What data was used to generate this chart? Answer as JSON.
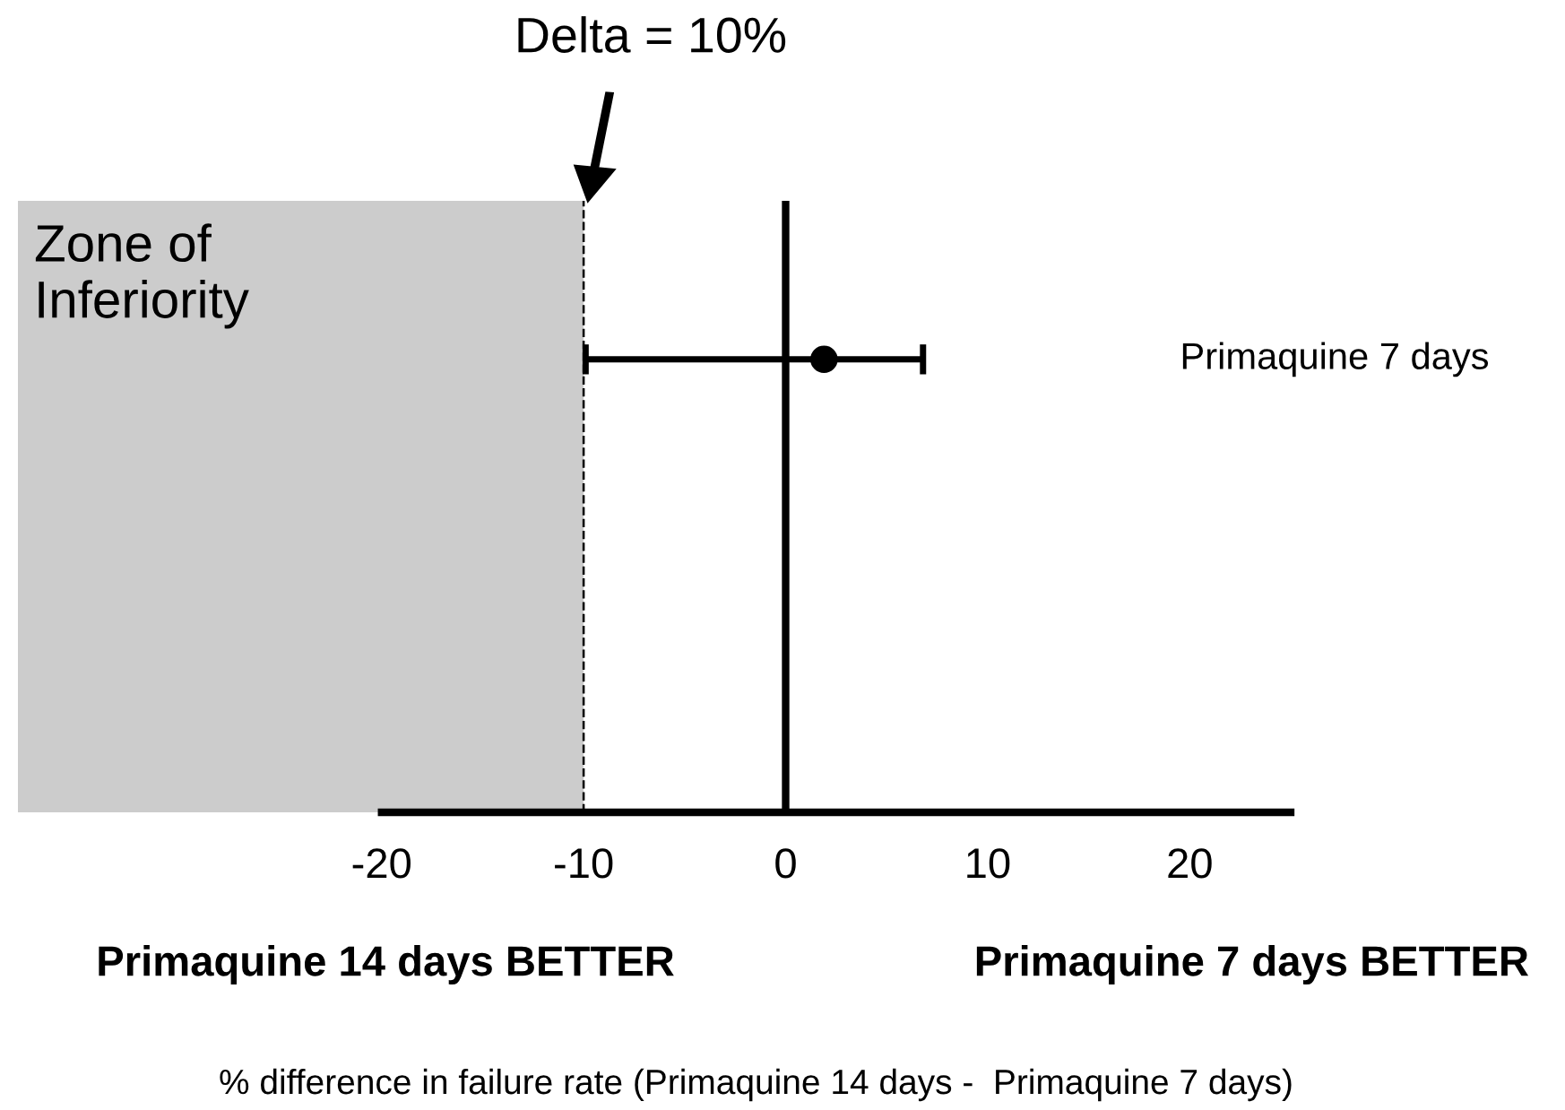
{
  "chart_data": {
    "type": "scatter",
    "orientation": "horizontal",
    "categories": [
      "Primaquine 7 days"
    ],
    "series": [
      {
        "color": "#000000",
        "values": [
          1.9
        ],
        "errors": [
          [
            -9.9,
            6.8
          ]
        ]
      }
    ],
    "marker": "circle",
    "xlim": [
      -38,
      25
    ],
    "xticks": [
      -20,
      -10,
      0,
      10,
      20
    ],
    "grid": false,
    "legend": false,
    "ref_lines": [
      {
        "axis": "x",
        "value": 0,
        "color": "#000000",
        "line_style": "solid"
      },
      {
        "axis": "x",
        "value": -10,
        "color": "#000000",
        "line_style": "dashed"
      }
    ],
    "bands": [
      {
        "axis": "x",
        "from": -38,
        "to": -10,
        "label": "Zone of\nInferiority",
        "color": "#cccccc"
      }
    ],
    "annotations": [
      "Delta = 10%",
      "Primaquine 14 days BETTER",
      "Primaquine 7 days BETTER",
      "% difference in failure rate (Primaquine 14 days -  Primaquine 7 days)"
    ]
  }
}
